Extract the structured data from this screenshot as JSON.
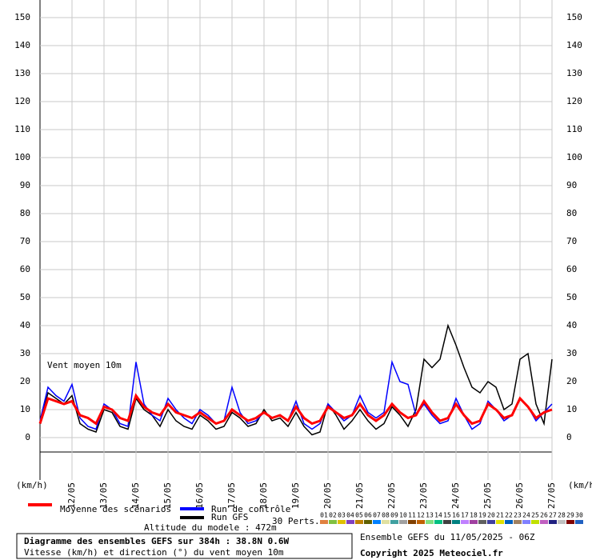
{
  "chart_data": {
    "type": "line",
    "annotation": "Vent moyen 10m",
    "y_unit_label": "(km/h)",
    "xlim": [
      0,
      384
    ],
    "ylim": [
      0,
      150
    ],
    "yticks": [
      0,
      10,
      20,
      30,
      40,
      50,
      60,
      70,
      80,
      90,
      100,
      110,
      120,
      130,
      140,
      150
    ],
    "xticks": [
      {
        "value": 24,
        "label": "12/05"
      },
      {
        "value": 48,
        "label": "13/05"
      },
      {
        "value": 72,
        "label": "14/05"
      },
      {
        "value": 96,
        "label": "15/05"
      },
      {
        "value": 120,
        "label": "16/05"
      },
      {
        "value": 144,
        "label": "17/05"
      },
      {
        "value": 168,
        "label": "18/05"
      },
      {
        "value": 192,
        "label": "19/05"
      },
      {
        "value": 216,
        "label": "20/05"
      },
      {
        "value": 240,
        "label": "21/05"
      },
      {
        "value": 264,
        "label": "22/05"
      },
      {
        "value": 288,
        "label": "23/05"
      },
      {
        "value": 312,
        "label": "24/05"
      },
      {
        "value": 336,
        "label": "25/05"
      },
      {
        "value": 360,
        "label": "26/05"
      },
      {
        "value": 384,
        "label": "27/05"
      }
    ],
    "grid": true,
    "x": [
      0,
      6,
      12,
      18,
      24,
      30,
      36,
      42,
      48,
      54,
      60,
      66,
      72,
      78,
      84,
      90,
      96,
      102,
      108,
      114,
      120,
      126,
      132,
      138,
      144,
      150,
      156,
      162,
      168,
      174,
      180,
      186,
      192,
      198,
      204,
      210,
      216,
      222,
      228,
      234,
      240,
      246,
      252,
      258,
      264,
      270,
      276,
      282,
      288,
      294,
      300,
      306,
      312,
      318,
      324,
      330,
      336,
      342,
      348,
      354,
      360,
      366,
      372,
      378,
      384
    ],
    "series": [
      {
        "name": "Moyenne des scénarios",
        "color": "#ff0000",
        "width": 3,
        "values": [
          5,
          14,
          13,
          12,
          13,
          8,
          7,
          5,
          11,
          10,
          7,
          6,
          15,
          11,
          9,
          8,
          12,
          9,
          8,
          7,
          9,
          7,
          5,
          6,
          10,
          8,
          6,
          7,
          9,
          7,
          8,
          6,
          11,
          7,
          5,
          6,
          11,
          9,
          7,
          8,
          12,
          8,
          6,
          8,
          12,
          9,
          7,
          8,
          13,
          9,
          6,
          7,
          12,
          8,
          5,
          6,
          12,
          10,
          7,
          8,
          14,
          11,
          7,
          9,
          10
        ]
      },
      {
        "name": "Run de contrôle",
        "color": "#0000ff",
        "width": 1.5,
        "values": [
          6,
          18,
          15,
          13,
          19,
          7,
          4,
          3,
          12,
          10,
          5,
          4,
          27,
          12,
          8,
          6,
          14,
          10,
          7,
          5,
          10,
          8,
          5,
          6,
          18,
          9,
          5,
          6,
          9,
          7,
          8,
          6,
          13,
          5,
          3,
          5,
          12,
          9,
          6,
          8,
          15,
          9,
          7,
          9,
          27,
          20,
          19,
          8,
          12,
          8,
          5,
          6,
          14,
          8,
          3,
          5,
          13,
          10,
          6,
          8,
          14,
          11,
          6,
          9,
          12
        ]
      },
      {
        "name": "Run GFS",
        "color": "#000000",
        "width": 1.5,
        "values": [
          5,
          16,
          14,
          12,
          15,
          5,
          3,
          2,
          10,
          9,
          4,
          3,
          14,
          10,
          8,
          4,
          10,
          6,
          4,
          3,
          8,
          6,
          3,
          4,
          9,
          7,
          4,
          5,
          10,
          6,
          7,
          4,
          9,
          4,
          1,
          2,
          12,
          8,
          3,
          6,
          10,
          6,
          3,
          5,
          11,
          8,
          4,
          10,
          28,
          25,
          28,
          40,
          33,
          25,
          18,
          16,
          20,
          18,
          10,
          12,
          28,
          30,
          12,
          5,
          28
        ]
      }
    ],
    "perturbations_label": "30 Perts.",
    "perturbations": [
      {
        "label": "01",
        "color": "#e08040"
      },
      {
        "label": "02",
        "color": "#80c040"
      },
      {
        "label": "03",
        "color": "#e0c000"
      },
      {
        "label": "04",
        "color": "#8040c0"
      },
      {
        "label": "05",
        "color": "#c08000"
      },
      {
        "label": "06",
        "color": "#606000"
      },
      {
        "label": "07",
        "color": "#0080ff"
      },
      {
        "label": "08",
        "color": "#e0e0a0"
      },
      {
        "label": "09",
        "color": "#40a0a0"
      },
      {
        "label": "10",
        "color": "#a0a0a0"
      },
      {
        "label": "11",
        "color": "#804000"
      },
      {
        "label": "12",
        "color": "#c06000"
      },
      {
        "label": "13",
        "color": "#80e080"
      },
      {
        "label": "14",
        "color": "#00c080"
      },
      {
        "label": "15",
        "color": "#404040"
      },
      {
        "label": "16",
        "color": "#008080"
      },
      {
        "label": "17",
        "color": "#c080ff"
      },
      {
        "label": "18",
        "color": "#a040a0"
      },
      {
        "label": "19",
        "color": "#606060"
      },
      {
        "label": "20",
        "color": "#4040a0"
      },
      {
        "label": "21",
        "color": "#e0e000"
      },
      {
        "label": "22",
        "color": "#0060c0"
      },
      {
        "label": "23",
        "color": "#a08060"
      },
      {
        "label": "24",
        "color": "#8080ff"
      },
      {
        "label": "25",
        "color": "#c0e000"
      },
      {
        "label": "26",
        "color": "#c060c0"
      },
      {
        "label": "27",
        "color": "#202080"
      },
      {
        "label": "28",
        "color": "#c0c0c0"
      },
      {
        "label": "29",
        "color": "#800000"
      },
      {
        "label": "30",
        "color": "#2060c0"
      }
    ],
    "altitude": "Altitude du modele : 472m",
    "run_info": "Ensemble GEFS du 11/05/2025 - 06Z",
    "box_title": "Diagramme des ensembles GEFS sur 384h : 38.8N 0.6W",
    "box_subtitle": "Vitesse (km/h) et direction (°) du vent moyen 10m",
    "copyright": "Copyright 2025 Meteociel.fr"
  }
}
